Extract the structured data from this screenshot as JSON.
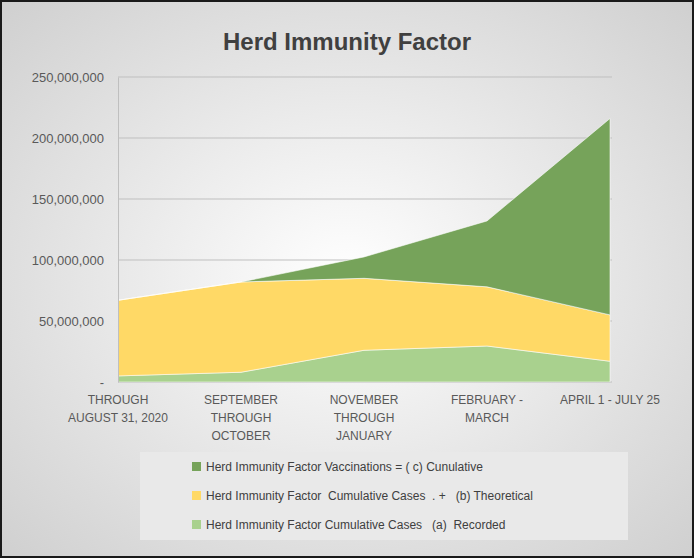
{
  "chart_data": {
    "type": "area",
    "stacked": true,
    "title": "Herd Immunity Factor",
    "categories": [
      "THROUGH\nAUGUST 31, 2020",
      "SEPTEMBER\nTHROUGH\nOCTOBER",
      "NOVEMBER\nTHROUGH\nJANUARY",
      "FEBRUARY -\nMARCH",
      "APRIL 1 - JULY 25"
    ],
    "series": [
      {
        "name": "Herd Immunity Factor Cumulative Cases   (a)  Recorded",
        "color": "#a9d18e",
        "values": [
          5000000,
          8000000,
          26000000,
          29500000,
          17000000
        ]
      },
      {
        "name": "Herd Immunity Factor  Cumulative Cases  . +   (b) Theoretical",
        "color": "#ffd966",
        "values": [
          62000000,
          74000000,
          59000000,
          48500000,
          38000000
        ]
      },
      {
        "name": "Herd Immunity Factor Vaccinations = ( c) Cunulative",
        "color": "#76a35a",
        "values": [
          0,
          0,
          17500000,
          54000000,
          161000000
        ]
      }
    ],
    "ylim": [
      0,
      250000000
    ],
    "yticks": [
      {
        "value": 0,
        "label": "-"
      },
      {
        "value": 50000000,
        "label": "50,000,000"
      },
      {
        "value": 100000000,
        "label": "100,000,000"
      },
      {
        "value": 150000000,
        "label": "150,000,000"
      },
      {
        "value": 200000000,
        "label": "200,000,000"
      },
      {
        "value": 250000000,
        "label": "250,000,000"
      }
    ],
    "grid": true,
    "legend": "bottom"
  }
}
